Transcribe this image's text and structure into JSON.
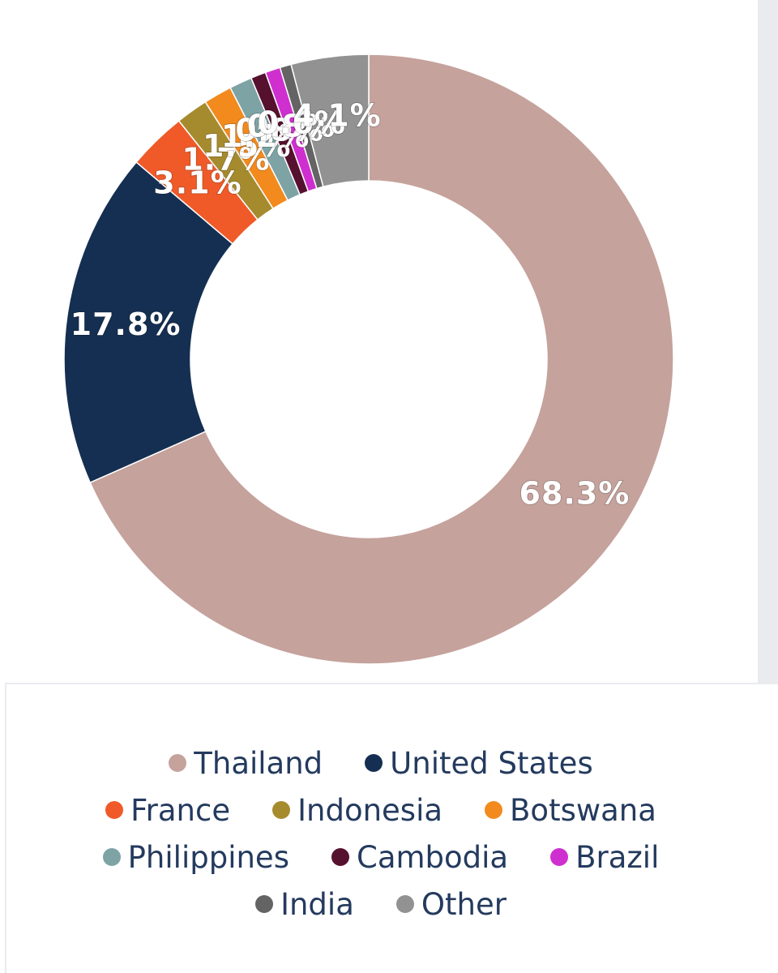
{
  "chart_data": {
    "type": "pie",
    "variant": "donut",
    "series": [
      {
        "name": "Thailand",
        "value": 68.3,
        "color": "#c5a29c",
        "label": "68.3%"
      },
      {
        "name": "United States",
        "value": 17.8,
        "color": "#152f52",
        "label": "17.8%"
      },
      {
        "name": "France",
        "value": 3.1,
        "color": "#f05a28",
        "label": "3.1%"
      },
      {
        "name": "Indonesia",
        "value": 1.7,
        "color": "#a68b2e",
        "label": "1.7%"
      },
      {
        "name": "Botswana",
        "value": 1.5,
        "color": "#f28a1e",
        "label": "1.5%"
      },
      {
        "name": "Philippines",
        "value": 1.2,
        "color": "#7ea3a5",
        "label": "1.2%"
      },
      {
        "name": "Cambodia",
        "value": 0.8,
        "color": "#56112f",
        "label": "0.8%"
      },
      {
        "name": "Brazil",
        "value": 0.8,
        "color": "#cf2fce",
        "label": "0.8%"
      },
      {
        "name": "India",
        "value": 0.6,
        "color": "#646464",
        "label": "0.6%"
      },
      {
        "name": "Other",
        "value": 4.1,
        "color": "#929292",
        "label": "4.1%"
      }
    ],
    "legend_position": "bottom"
  }
}
